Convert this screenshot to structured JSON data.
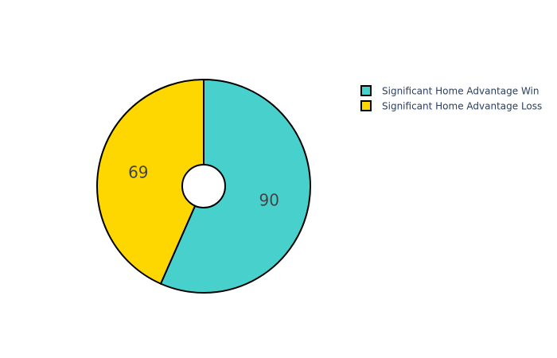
{
  "chart_data": {
    "type": "pie",
    "hole": true,
    "slices": [
      {
        "label": "Significant Home Advantage Win",
        "value": 90,
        "color": "#48D1CC"
      },
      {
        "label": "Significant Home Advantage Loss",
        "value": 69,
        "color": "#FFD700"
      }
    ],
    "legend_position": "top-right",
    "border_color": "#000000"
  }
}
